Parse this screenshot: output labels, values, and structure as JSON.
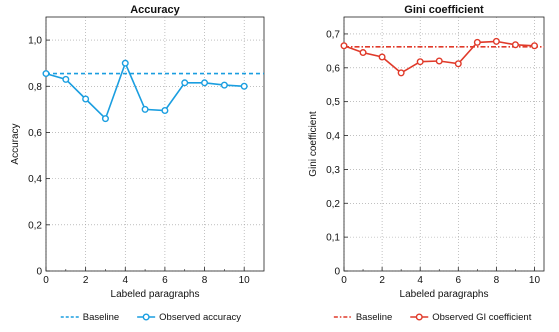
{
  "chart_data": [
    {
      "type": "line",
      "title": "Accuracy",
      "xlabel": "Labeled paragraphs",
      "ylabel": "Accuracy",
      "xlim": [
        0,
        11
      ],
      "ylim": [
        0,
        1.1
      ],
      "xticks": [
        0,
        2,
        4,
        6,
        8,
        10
      ],
      "xtick_labels": [
        "0",
        "2",
        "4",
        "6",
        "8",
        "10"
      ],
      "yticks": [
        0,
        0.2,
        0.4,
        0.6,
        0.8,
        1.0
      ],
      "ytick_labels": [
        "0",
        "0,2",
        "0,4",
        "0,6",
        "0,8",
        "1,0"
      ],
      "grid": true,
      "legend_position": "bottom",
      "color": "#1a9ee0",
      "baseline": {
        "name": "Baseline",
        "value": 0.855,
        "style": "dashed"
      },
      "series": [
        {
          "name": "Observed accuracy",
          "x": [
            0,
            1,
            2,
            3,
            4,
            5,
            6,
            7,
            8,
            9,
            10
          ],
          "values": [
            0.855,
            0.83,
            0.745,
            0.66,
            0.9,
            0.7,
            0.695,
            0.815,
            0.815,
            0.805,
            0.8
          ]
        }
      ]
    },
    {
      "type": "line",
      "title": "Gini coefficient",
      "xlabel": "Labeled paragraphs",
      "ylabel": "Gini coefficient",
      "xlim": [
        0,
        10.5
      ],
      "ylim": [
        0,
        0.75
      ],
      "xticks": [
        0,
        2,
        4,
        6,
        8,
        10
      ],
      "xtick_labels": [
        "0",
        "2",
        "4",
        "6",
        "8",
        "10"
      ],
      "yticks": [
        0,
        0.1,
        0.2,
        0.3,
        0.4,
        0.5,
        0.6,
        0.7
      ],
      "ytick_labels": [
        "0",
        "0,1",
        "0,2",
        "0,3",
        "0,4",
        "0,5",
        "0,6",
        "0,7"
      ],
      "grid": true,
      "legend_position": "bottom",
      "color": "#e03a2a",
      "baseline": {
        "name": "Baseline",
        "value": 0.662,
        "style": "dash-dot"
      },
      "series": [
        {
          "name": "Observed GI coefficient",
          "x": [
            0,
            1,
            2,
            3,
            4,
            5,
            6,
            7,
            8,
            9,
            10
          ],
          "values": [
            0.665,
            0.645,
            0.632,
            0.585,
            0.618,
            0.62,
            0.612,
            0.675,
            0.678,
            0.668,
            0.665
          ]
        }
      ]
    }
  ]
}
